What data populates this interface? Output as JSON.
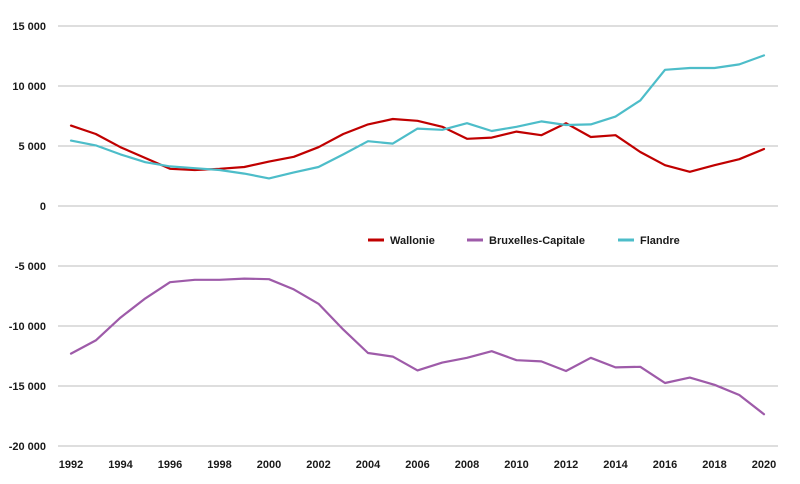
{
  "chart_data": {
    "type": "line",
    "title": "",
    "xlabel": "",
    "ylabel": "",
    "x": [
      1992,
      1993,
      1994,
      1995,
      1996,
      1997,
      1998,
      1999,
      2000,
      2001,
      2002,
      2003,
      2004,
      2005,
      2006,
      2007,
      2008,
      2009,
      2010,
      2011,
      2012,
      2013,
      2014,
      2015,
      2016,
      2017,
      2018,
      2019,
      2020
    ],
    "xlim": [
      1992,
      2020
    ],
    "ylim": [
      -20000,
      15000
    ],
    "x_tick_labels": [
      "1992",
      "1994",
      "1996",
      "1998",
      "2000",
      "2002",
      "2004",
      "2006",
      "2008",
      "2010",
      "2012",
      "2014",
      "2016",
      "2018",
      "2020"
    ],
    "x_tick_values": [
      1992,
      1994,
      1996,
      1998,
      2000,
      2002,
      2004,
      2006,
      2008,
      2010,
      2012,
      2014,
      2016,
      2018,
      2020
    ],
    "y_tick_labels": [
      "15 000",
      "10 000",
      "5 000",
      "0",
      "-5 000",
      "-10 000",
      "-15 000",
      "-20 000"
    ],
    "y_tick_values": [
      15000,
      10000,
      5000,
      0,
      -5000,
      -10000,
      -15000,
      -20000
    ],
    "grid": true,
    "legend_position": "center",
    "series": [
      {
        "name": "Wallonie",
        "color": "#c00000",
        "values": [
          6700,
          6000,
          4900,
          4000,
          3100,
          3000,
          3100,
          3250,
          3700,
          4100,
          4900,
          6000,
          6800,
          7250,
          7100,
          6600,
          5600,
          5700,
          6200,
          5900,
          6900,
          5750,
          5900,
          4500,
          3400,
          2850,
          3400,
          3900,
          4750
        ]
      },
      {
        "name": "Bruxelles-Capitale",
        "color": "#9e5ba9",
        "values": [
          -12300,
          -11200,
          -9300,
          -7700,
          -6350,
          -6150,
          -6150,
          -6050,
          -6100,
          -6950,
          -8150,
          -10300,
          -12250,
          -12550,
          -13700,
          -13050,
          -12650,
          -12100,
          -12850,
          -12950,
          -13750,
          -12650,
          -13450,
          -13400,
          -14750,
          -14300,
          -14900,
          -15750,
          -17350
        ]
      },
      {
        "name": "Flandre",
        "color": "#4dbdc9",
        "values": [
          5450,
          5050,
          4300,
          3650,
          3300,
          3150,
          3000,
          2700,
          2300,
          2800,
          3250,
          4300,
          5400,
          5200,
          6450,
          6350,
          6900,
          6250,
          6600,
          7050,
          6750,
          6800,
          7450,
          8800,
          11350,
          11500,
          11500,
          11800,
          12550
        ]
      }
    ]
  }
}
